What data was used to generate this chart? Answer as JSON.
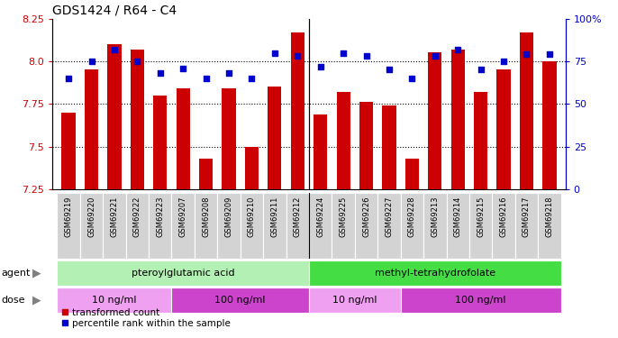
{
  "title": "GDS1424 / R64 - C4",
  "samples": [
    "GSM69219",
    "GSM69220",
    "GSM69221",
    "GSM69222",
    "GSM69223",
    "GSM69207",
    "GSM69208",
    "GSM69209",
    "GSM69210",
    "GSM69211",
    "GSM69212",
    "GSM69224",
    "GSM69225",
    "GSM69226",
    "GSM69227",
    "GSM69228",
    "GSM69213",
    "GSM69214",
    "GSM69215",
    "GSM69216",
    "GSM69217",
    "GSM69218"
  ],
  "transformed_count": [
    7.7,
    7.95,
    8.1,
    8.07,
    7.8,
    7.84,
    7.43,
    7.84,
    7.5,
    7.85,
    8.17,
    7.69,
    7.82,
    7.76,
    7.74,
    7.43,
    8.05,
    8.07,
    7.82,
    7.95,
    8.17,
    8.0
  ],
  "percentile_rank": [
    65,
    75,
    82,
    75,
    68,
    71,
    65,
    68,
    65,
    80,
    78,
    72,
    80,
    78,
    70,
    65,
    78,
    82,
    70,
    75,
    79,
    79
  ],
  "ylim_left": [
    7.25,
    8.25
  ],
  "ylim_right": [
    0,
    100
  ],
  "yticks_left": [
    7.25,
    7.5,
    7.75,
    8.0,
    8.25
  ],
  "yticks_right": [
    0,
    25,
    50,
    75,
    100
  ],
  "hlines": [
    7.5,
    7.75,
    8.0
  ],
  "bar_color": "#cc0000",
  "dot_color": "#0000cc",
  "agent_groups": [
    {
      "label": "pteroylglutamic acid",
      "start": 0,
      "end": 10,
      "color": "#b3f0b3"
    },
    {
      "label": "methyl-tetrahydrofolate",
      "start": 11,
      "end": 21,
      "color": "#44dd44"
    }
  ],
  "dose_groups": [
    {
      "label": "10 ng/ml",
      "start": 0,
      "end": 4,
      "color": "#f0a0f0"
    },
    {
      "label": "100 ng/ml",
      "start": 5,
      "end": 10,
      "color": "#cc44cc"
    },
    {
      "label": "10 ng/ml",
      "start": 11,
      "end": 14,
      "color": "#f0a0f0"
    },
    {
      "label": "100 ng/ml",
      "start": 15,
      "end": 21,
      "color": "#cc44cc"
    }
  ],
  "legend_items": [
    {
      "label": "transformed count",
      "color": "#cc0000"
    },
    {
      "label": "percentile rank within the sample",
      "color": "#0000cc"
    }
  ],
  "agent_label": "agent",
  "dose_label": "dose",
  "bar_width": 0.6,
  "background_color": "#ffffff",
  "plot_bg_color": "#ffffff",
  "tick_label_size": 6.5,
  "title_fontsize": 10,
  "dot_size": 20
}
